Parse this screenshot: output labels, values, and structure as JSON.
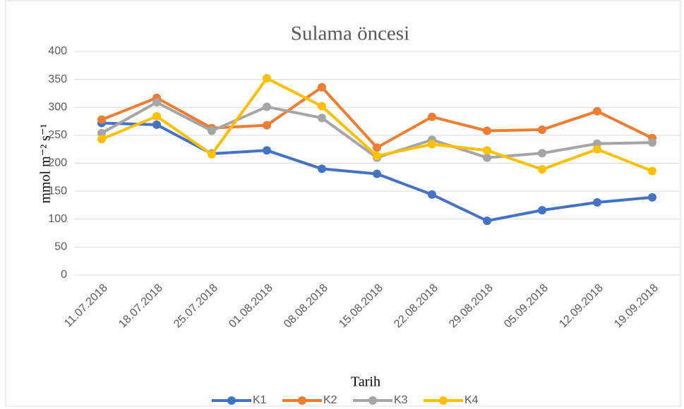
{
  "chart_data": {
    "type": "line",
    "title": "Sulama öncesi",
    "x_label": "Tarih",
    "y_label": "mmol m⁻² s⁻¹",
    "categories": [
      "11.07.2018",
      "18.07.2018",
      "25.07.2018",
      "01.08.2018",
      "08.08.2018",
      "15.08.2018",
      "22.08.2018",
      "29.08.2018",
      "05.09.2018",
      "12.09.2018",
      "19.09.2018"
    ],
    "series": [
      {
        "name": "K1",
        "color": "#4472c4",
        "values": [
          272,
          269,
          217,
          223,
          190,
          181,
          144,
          97,
          116,
          130,
          139
        ]
      },
      {
        "name": "K2",
        "color": "#ed7d31",
        "values": [
          278,
          317,
          263,
          268,
          336,
          228,
          283,
          258,
          260,
          293,
          245
        ]
      },
      {
        "name": "K3",
        "color": "#a5a5a5",
        "values": [
          254,
          309,
          258,
          301,
          281,
          210,
          242,
          210,
          218,
          235,
          237
        ]
      },
      {
        "name": "K4",
        "color": "#ffc000",
        "values": [
          243,
          284,
          216,
          352,
          302,
          213,
          234,
          223,
          189,
          225,
          186
        ]
      }
    ],
    "ylim": [
      0,
      400
    ],
    "yticks": [
      0,
      50,
      100,
      150,
      200,
      250,
      300,
      350,
      400
    ],
    "grid": true,
    "legend": "bottom"
  }
}
